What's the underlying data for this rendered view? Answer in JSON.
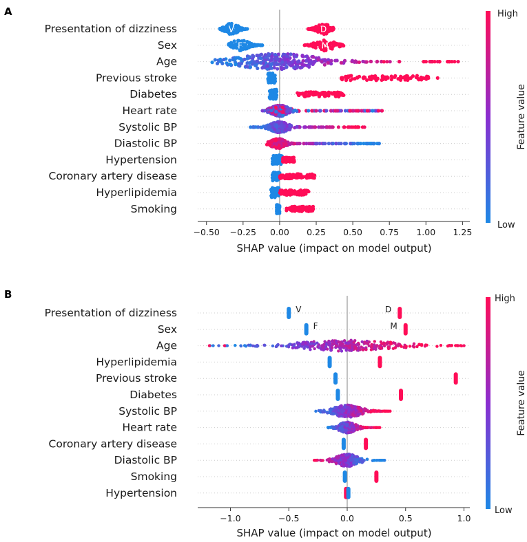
{
  "colors": {
    "low": "#1e88e5",
    "high": "#ff0d57",
    "mid": "#8a2ed0",
    "zero_line": "#999999",
    "grid": "#cccccc"
  },
  "chart_data": [
    {
      "type": "scatter",
      "panel": "A",
      "xlabel": "SHAP value (impact on model output)",
      "xlim": [
        -0.56,
        1.3
      ],
      "xticks": [
        -0.5,
        -0.25,
        0,
        0.25,
        0.5,
        0.75,
        1.0,
        1.25
      ],
      "xtick_labels": [
        "−0.50",
        "−0.25",
        "0.00",
        "0.25",
        "0.50",
        "0.75",
        "1.00",
        "1.25"
      ],
      "colorbar": {
        "title": "Feature value",
        "high": "High",
        "low": "Low"
      },
      "features": [
        {
          "name": "Presentation of dizziness",
          "kind": "categorical",
          "groups": [
            {
              "label": "V",
              "center": -0.33,
              "low": -0.41,
              "high": -0.22,
              "color": "low"
            },
            {
              "label": "D",
              "center": 0.3,
              "low": 0.19,
              "high": 0.37,
              "color": "high"
            }
          ]
        },
        {
          "name": "Sex",
          "kind": "categorical",
          "groups": [
            {
              "label": "F",
              "center": -0.27,
              "low": -0.35,
              "high": -0.11,
              "color": "low"
            },
            {
              "label": "M",
              "center": 0.31,
              "low": 0.17,
              "high": 0.44,
              "color": "high"
            }
          ]
        },
        {
          "name": "Age",
          "kind": "continuous",
          "min": -0.48,
          "max": 1.22,
          "peak": -0.02,
          "spread": 0.22,
          "width": 12,
          "low_side": "left",
          "outliers": [
            1.03,
            1.08,
            1.22
          ]
        },
        {
          "name": "Previous stroke",
          "kind": "bimodal",
          "clusters": [
            {
              "low": -0.08,
              "high": -0.03,
              "color": "low"
            },
            {
              "low": 0.42,
              "high": 1.02,
              "color": "high"
            }
          ],
          "outliers": [
            1.08
          ]
        },
        {
          "name": "Diabetes",
          "kind": "bimodal",
          "clusters": [
            {
              "low": -0.07,
              "high": -0.02,
              "color": "low"
            },
            {
              "low": 0.12,
              "high": 0.44,
              "color": "high"
            }
          ]
        },
        {
          "name": "Heart rate",
          "kind": "continuous",
          "min": -0.12,
          "max": 0.7,
          "peak": 0.0,
          "spread": 0.05,
          "width": 8,
          "low_side": "mixed",
          "outliers": [
            0.48,
            0.53,
            0.6,
            0.7
          ]
        },
        {
          "name": "Systolic BP",
          "kind": "continuous",
          "min": -0.23,
          "max": 0.58,
          "peak": 0.0,
          "spread": 0.05,
          "width": 8,
          "low_side": "left",
          "outliers": [
            0.44,
            0.48,
            0.58
          ]
        },
        {
          "name": "Diastolic BP",
          "kind": "continuous",
          "min": -0.09,
          "max": 0.68,
          "peak": -0.01,
          "spread": 0.04,
          "width": 7,
          "low_side": "right",
          "outliers": [
            0.6,
            0.64,
            0.68
          ]
        },
        {
          "name": "Hypertension",
          "kind": "bimodal",
          "clusters": [
            {
              "low": -0.05,
              "high": 0.02,
              "color": "low"
            },
            {
              "low": 0.02,
              "high": 0.1,
              "color": "high"
            }
          ]
        },
        {
          "name": "Coronary artery disease",
          "kind": "bimodal",
          "clusters": [
            {
              "low": -0.05,
              "high": 0.0,
              "color": "low"
            },
            {
              "low": 0.0,
              "high": 0.24,
              "color": "high"
            }
          ]
        },
        {
          "name": "Hyperlipidemia",
          "kind": "bimodal",
          "clusters": [
            {
              "low": -0.06,
              "high": 0.0,
              "color": "low"
            },
            {
              "low": 0.0,
              "high": 0.2,
              "color": "high"
            }
          ]
        },
        {
          "name": "Smoking",
          "kind": "bimodal",
          "clusters": [
            {
              "low": -0.02,
              "high": 0.0,
              "color": "low"
            },
            {
              "low": 0.04,
              "high": 0.23,
              "color": "high"
            }
          ]
        }
      ]
    },
    {
      "type": "scatter",
      "panel": "B",
      "xlabel": "SHAP value (impact on model output)",
      "xlim": [
        -1.28,
        1.05
      ],
      "xticks": [
        -1.0,
        -0.5,
        0.0,
        0.5,
        1.0
      ],
      "xtick_labels": [
        "−1.0",
        "−0.5",
        "0.0",
        "0.5",
        "1.0"
      ],
      "colorbar": {
        "title": "Feature value",
        "high": "High",
        "low": "Low"
      },
      "features": [
        {
          "name": "Presentation of dizziness",
          "kind": "stack",
          "groups": [
            {
              "label": "V",
              "x": -0.5,
              "color": "low"
            },
            {
              "label": "D",
              "x": 0.45,
              "color": "high"
            }
          ]
        },
        {
          "name": "Sex",
          "kind": "stack",
          "groups": [
            {
              "label": "F",
              "x": -0.35,
              "color": "low"
            },
            {
              "label": "M",
              "x": 0.5,
              "color": "high"
            }
          ]
        },
        {
          "name": "Age",
          "kind": "continuous",
          "min": -1.18,
          "max": 1.0,
          "peak": 0.0,
          "spread": 0.35,
          "width": 8,
          "low_side": "left",
          "outliers": [
            -1.18,
            -1.05,
            0.88,
            0.95,
            1.0
          ]
        },
        {
          "name": "Hyperlipidemia",
          "kind": "stack",
          "groups": [
            {
              "x": -0.15,
              "color": "low"
            },
            {
              "x": 0.28,
              "color": "high"
            }
          ]
        },
        {
          "name": "Previous stroke",
          "kind": "stack",
          "groups": [
            {
              "x": -0.1,
              "color": "low"
            },
            {
              "x": 0.93,
              "color": "high"
            }
          ]
        },
        {
          "name": "Diabetes",
          "kind": "stack",
          "groups": [
            {
              "x": -0.08,
              "color": "low"
            },
            {
              "x": 0.46,
              "color": "high"
            }
          ]
        },
        {
          "name": "Systolic BP",
          "kind": "continuous",
          "min": -0.28,
          "max": 0.37,
          "peak": 0.0,
          "spread": 0.1,
          "width": 9,
          "low_side": "left",
          "outliers": []
        },
        {
          "name": "Heart rate",
          "kind": "continuous",
          "min": -0.17,
          "max": 0.28,
          "peak": 0.0,
          "spread": 0.06,
          "width": 8,
          "low_side": "left",
          "outliers": []
        },
        {
          "name": "Coronary artery disease",
          "kind": "stack",
          "groups": [
            {
              "x": -0.03,
              "color": "low"
            },
            {
              "x": 0.16,
              "color": "high"
            }
          ]
        },
        {
          "name": "Diastolic BP",
          "kind": "continuous",
          "min": -0.3,
          "max": 0.32,
          "peak": 0.0,
          "spread": 0.08,
          "width": 9,
          "low_side": "right",
          "outliers": [
            0.32
          ]
        },
        {
          "name": "Smoking",
          "kind": "stack",
          "groups": [
            {
              "x": -0.02,
              "color": "low"
            },
            {
              "x": 0.25,
              "color": "high"
            }
          ]
        },
        {
          "name": "Hypertension",
          "kind": "stack",
          "groups": [
            {
              "x": -0.01,
              "color": "high"
            },
            {
              "x": 0.01,
              "color": "low"
            }
          ]
        }
      ]
    }
  ]
}
